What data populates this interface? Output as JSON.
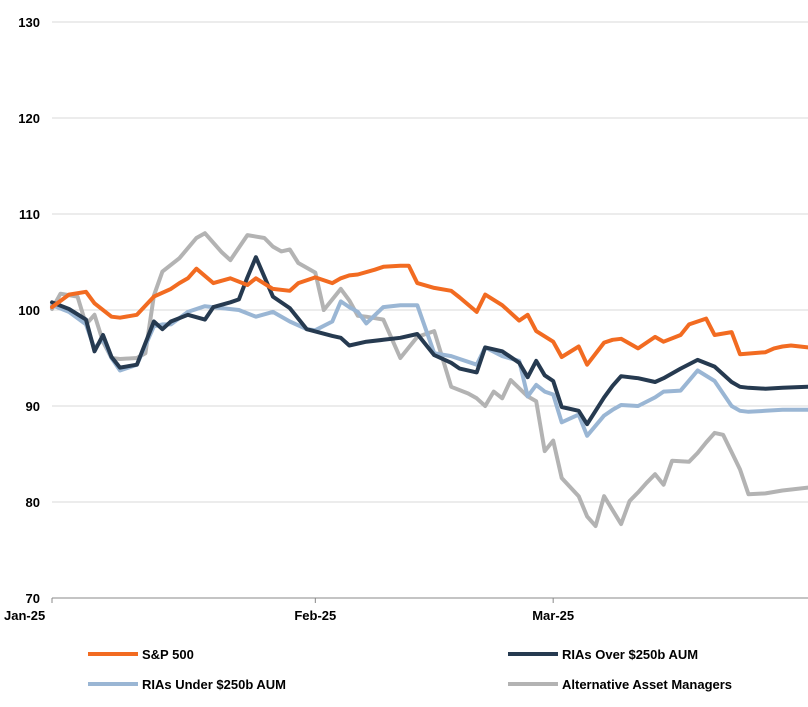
{
  "chart_data": {
    "type": "line",
    "title": "",
    "xlabel": "",
    "ylabel": "",
    "ylim": [
      70,
      130
    ],
    "y_ticks": [
      70,
      80,
      90,
      100,
      110,
      120,
      130
    ],
    "x_ticks": [
      {
        "label": "Jan-25",
        "x": 0
      },
      {
        "label": "Feb-25",
        "x": 31
      },
      {
        "label": "Mar-25",
        "x": 59
      }
    ],
    "x_max": 89,
    "grid": "horizontal",
    "legend_position": "bottom",
    "series": [
      {
        "name": "S&P 500",
        "color": "#f26b21",
        "x": [
          0,
          2,
          4,
          5,
          7,
          8,
          10,
          12,
          14,
          15,
          16,
          17,
          19,
          21,
          23,
          24,
          26,
          28,
          29,
          31,
          33,
          34,
          35,
          36,
          38,
          39,
          41,
          42,
          43,
          45,
          47,
          48,
          50,
          51,
          53,
          55,
          56,
          57,
          59,
          60,
          62,
          63,
          65,
          66,
          67,
          69,
          71,
          72,
          74,
          75,
          77,
          78,
          80,
          81,
          84,
          85,
          86,
          87,
          89
        ],
        "values": [
          100.3,
          101.6,
          101.9,
          100.7,
          99.3,
          99.2,
          99.5,
          101.4,
          102.2,
          102.8,
          103.3,
          104.3,
          102.8,
          103.3,
          102.6,
          103.3,
          102.2,
          102.0,
          102.8,
          103.4,
          102.8,
          103.3,
          103.6,
          103.7,
          104.2,
          104.5,
          104.6,
          104.6,
          102.8,
          102.3,
          102.0,
          101.3,
          99.8,
          101.6,
          100.5,
          98.9,
          99.5,
          97.8,
          96.7,
          95.1,
          96.2,
          94.3,
          96.6,
          96.9,
          97.0,
          96.0,
          97.2,
          96.7,
          97.4,
          98.5,
          99.1,
          97.4,
          97.7,
          95.4,
          95.6,
          96.0,
          96.2,
          96.3,
          96.1
        ]
      },
      {
        "name": "RIAs Over $250b AUM",
        "color": "#263a50",
        "x": [
          0,
          2,
          4,
          5,
          6,
          7,
          8,
          10,
          12,
          13,
          14,
          16,
          18,
          19,
          21,
          22,
          23,
          24,
          26,
          28,
          30,
          33,
          34,
          35,
          37,
          39,
          41,
          43,
          45,
          47,
          48,
          50,
          51,
          53,
          55,
          56,
          57,
          58,
          59,
          60,
          62,
          63,
          65,
          66,
          67,
          69,
          71,
          72,
          74,
          76,
          78,
          80,
          81,
          82,
          84,
          86,
          89
        ],
        "values": [
          100.8,
          100.1,
          99.0,
          95.7,
          97.4,
          95.1,
          94.0,
          94.3,
          98.8,
          98.0,
          98.8,
          99.5,
          99.0,
          100.3,
          100.8,
          101.1,
          103.4,
          105.5,
          101.4,
          100.2,
          98.0,
          97.3,
          97.1,
          96.3,
          96.7,
          96.9,
          97.1,
          97.5,
          95.3,
          94.5,
          93.9,
          93.5,
          96.1,
          95.7,
          94.5,
          93.0,
          94.7,
          93.2,
          92.6,
          89.9,
          89.5,
          88.1,
          90.9,
          92.1,
          93.1,
          92.9,
          92.5,
          92.9,
          93.9,
          94.8,
          94.1,
          92.5,
          92.0,
          91.9,
          91.8,
          91.9,
          92.0
        ]
      },
      {
        "name": "RIAs Under $250b AUM",
        "color": "#9ab6d4",
        "x": [
          0,
          2,
          4,
          5,
          6,
          7,
          8,
          10,
          12,
          13,
          14,
          16,
          18,
          20,
          22,
          24,
          26,
          28,
          30,
          31,
          33,
          34,
          35,
          36,
          37,
          39,
          41,
          43,
          45,
          47,
          48,
          50,
          51,
          53,
          55,
          56,
          57,
          58,
          59,
          60,
          62,
          63,
          65,
          66,
          67,
          69,
          71,
          72,
          74,
          76,
          78,
          80,
          81,
          82,
          84,
          86,
          89
        ],
        "values": [
          100.5,
          99.8,
          98.5,
          96.0,
          97.0,
          95.0,
          93.7,
          94.3,
          98.3,
          98.5,
          98.5,
          99.8,
          100.4,
          100.2,
          100.0,
          99.3,
          99.8,
          98.8,
          98.0,
          97.9,
          98.8,
          100.9,
          100.3,
          99.8,
          98.6,
          100.3,
          100.5,
          100.5,
          95.5,
          95.2,
          94.9,
          94.3,
          96.1,
          95.2,
          94.7,
          91.0,
          92.2,
          91.5,
          91.2,
          88.3,
          89.1,
          86.9,
          89.0,
          89.6,
          90.1,
          90.0,
          90.9,
          91.5,
          91.6,
          93.7,
          92.6,
          90.0,
          89.5,
          89.4,
          89.5,
          89.6,
          89.6
        ]
      },
      {
        "name": "Alternative Asset Managers",
        "color": "#b3b3b3",
        "x": [
          0,
          1,
          3,
          4,
          5,
          6,
          7,
          8,
          10,
          11,
          12,
          13,
          15,
          17,
          18,
          20,
          21,
          23,
          25,
          26,
          27,
          28,
          29,
          31,
          32,
          34,
          35,
          36,
          37,
          39,
          41,
          43,
          44,
          45,
          47,
          49,
          50,
          51,
          52,
          53,
          54,
          56,
          57,
          58,
          59,
          60,
          62,
          63,
          64,
          65,
          67,
          68,
          69,
          70,
          71,
          72,
          73,
          75,
          76,
          77,
          78,
          79,
          80,
          81,
          82,
          84,
          86,
          89
        ],
        "values": [
          100.1,
          101.7,
          101.4,
          98.5,
          99.5,
          96.7,
          95.0,
          94.9,
          95.0,
          95.5,
          101.5,
          104.0,
          105.4,
          107.5,
          108.0,
          106.0,
          105.2,
          107.8,
          107.5,
          106.6,
          106.1,
          106.3,
          104.9,
          103.9,
          100.0,
          102.2,
          101.0,
          99.4,
          99.3,
          99.0,
          95.0,
          97.2,
          97.5,
          97.8,
          92.0,
          91.3,
          90.8,
          90.0,
          91.5,
          90.8,
          92.7,
          91.0,
          90.5,
          85.3,
          86.4,
          82.5,
          80.6,
          78.5,
          77.5,
          80.6,
          77.7,
          80.1,
          81.0,
          82.0,
          82.9,
          81.8,
          84.3,
          84.2,
          85.1,
          86.2,
          87.2,
          87.0,
          85.2,
          83.4,
          80.8,
          80.9,
          81.2,
          81.5
        ]
      }
    ]
  }
}
